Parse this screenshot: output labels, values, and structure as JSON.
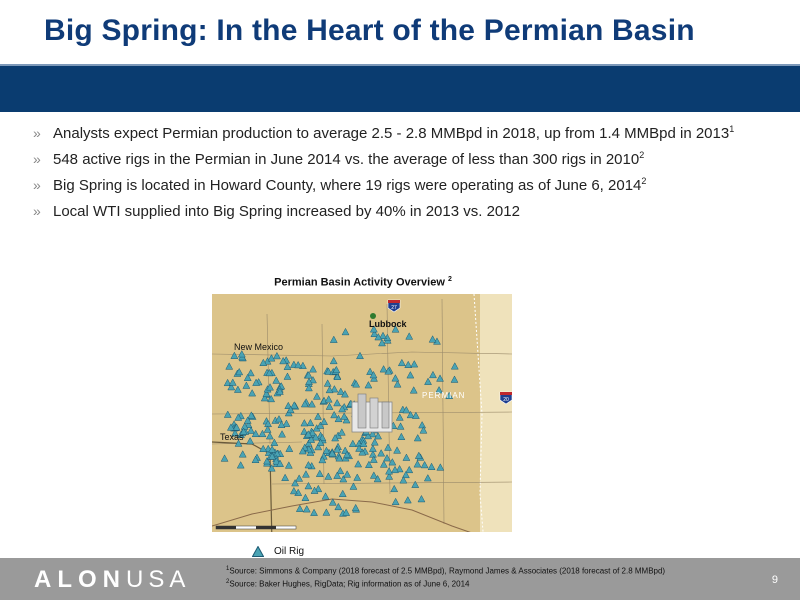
{
  "slide": {
    "title": "Big Spring: In the Heart of the Permian Basin",
    "page_number": "9",
    "bullet_marker": "»",
    "bullets": [
      {
        "text": "Analysts expect Permian production to average 2.5 - 2.8 MMBpd in 2018, up from 1.4 MMBpd in 2013",
        "note": "1"
      },
      {
        "text": "548 active rigs in the Permian in June 2014 vs. the average of less than 300 rigs in 2010",
        "note": "2"
      },
      {
        "text": "Big Spring is located in Howard County, where 19 rigs were operating as of June 6, 2014",
        "note": "2"
      },
      {
        "text": "Local WTI supplied into Big Spring increased by 40% in 2013 vs. 2012",
        "note": ""
      }
    ]
  },
  "map": {
    "title": "Permian Basin Activity Overview",
    "title_note": "2",
    "labels": {
      "lubbock": "Lubbock",
      "new_mexico": "New Mexico",
      "texas": "Texas",
      "permian": "PERMIAN",
      "interstate_north": "27",
      "interstate_east": "20"
    },
    "legend_label": "Oil Rig",
    "colors": {
      "land": "#dcc48a",
      "land_east": "#efe2bb",
      "rig": "#4aa3b3",
      "rig_stroke": "#1c5a73"
    }
  },
  "footer": {
    "logo_alon": "ALON",
    "logo_usa": "USA",
    "source_1": "Source: Simmons & Company (2018 forecast of 2.5 MMBpd),  Raymond James & Associates  (2018 forecast of 2.8 MMBpd)",
    "source_1_note": "1",
    "source_2": "Source: Baker Hughes, RigData; Rig information as of June 6, 2014",
    "source_2_note": "2"
  },
  "colors": {
    "title": "#0f3b78",
    "title_bar": "#0a3c70",
    "footer": "#9a9a9a"
  }
}
